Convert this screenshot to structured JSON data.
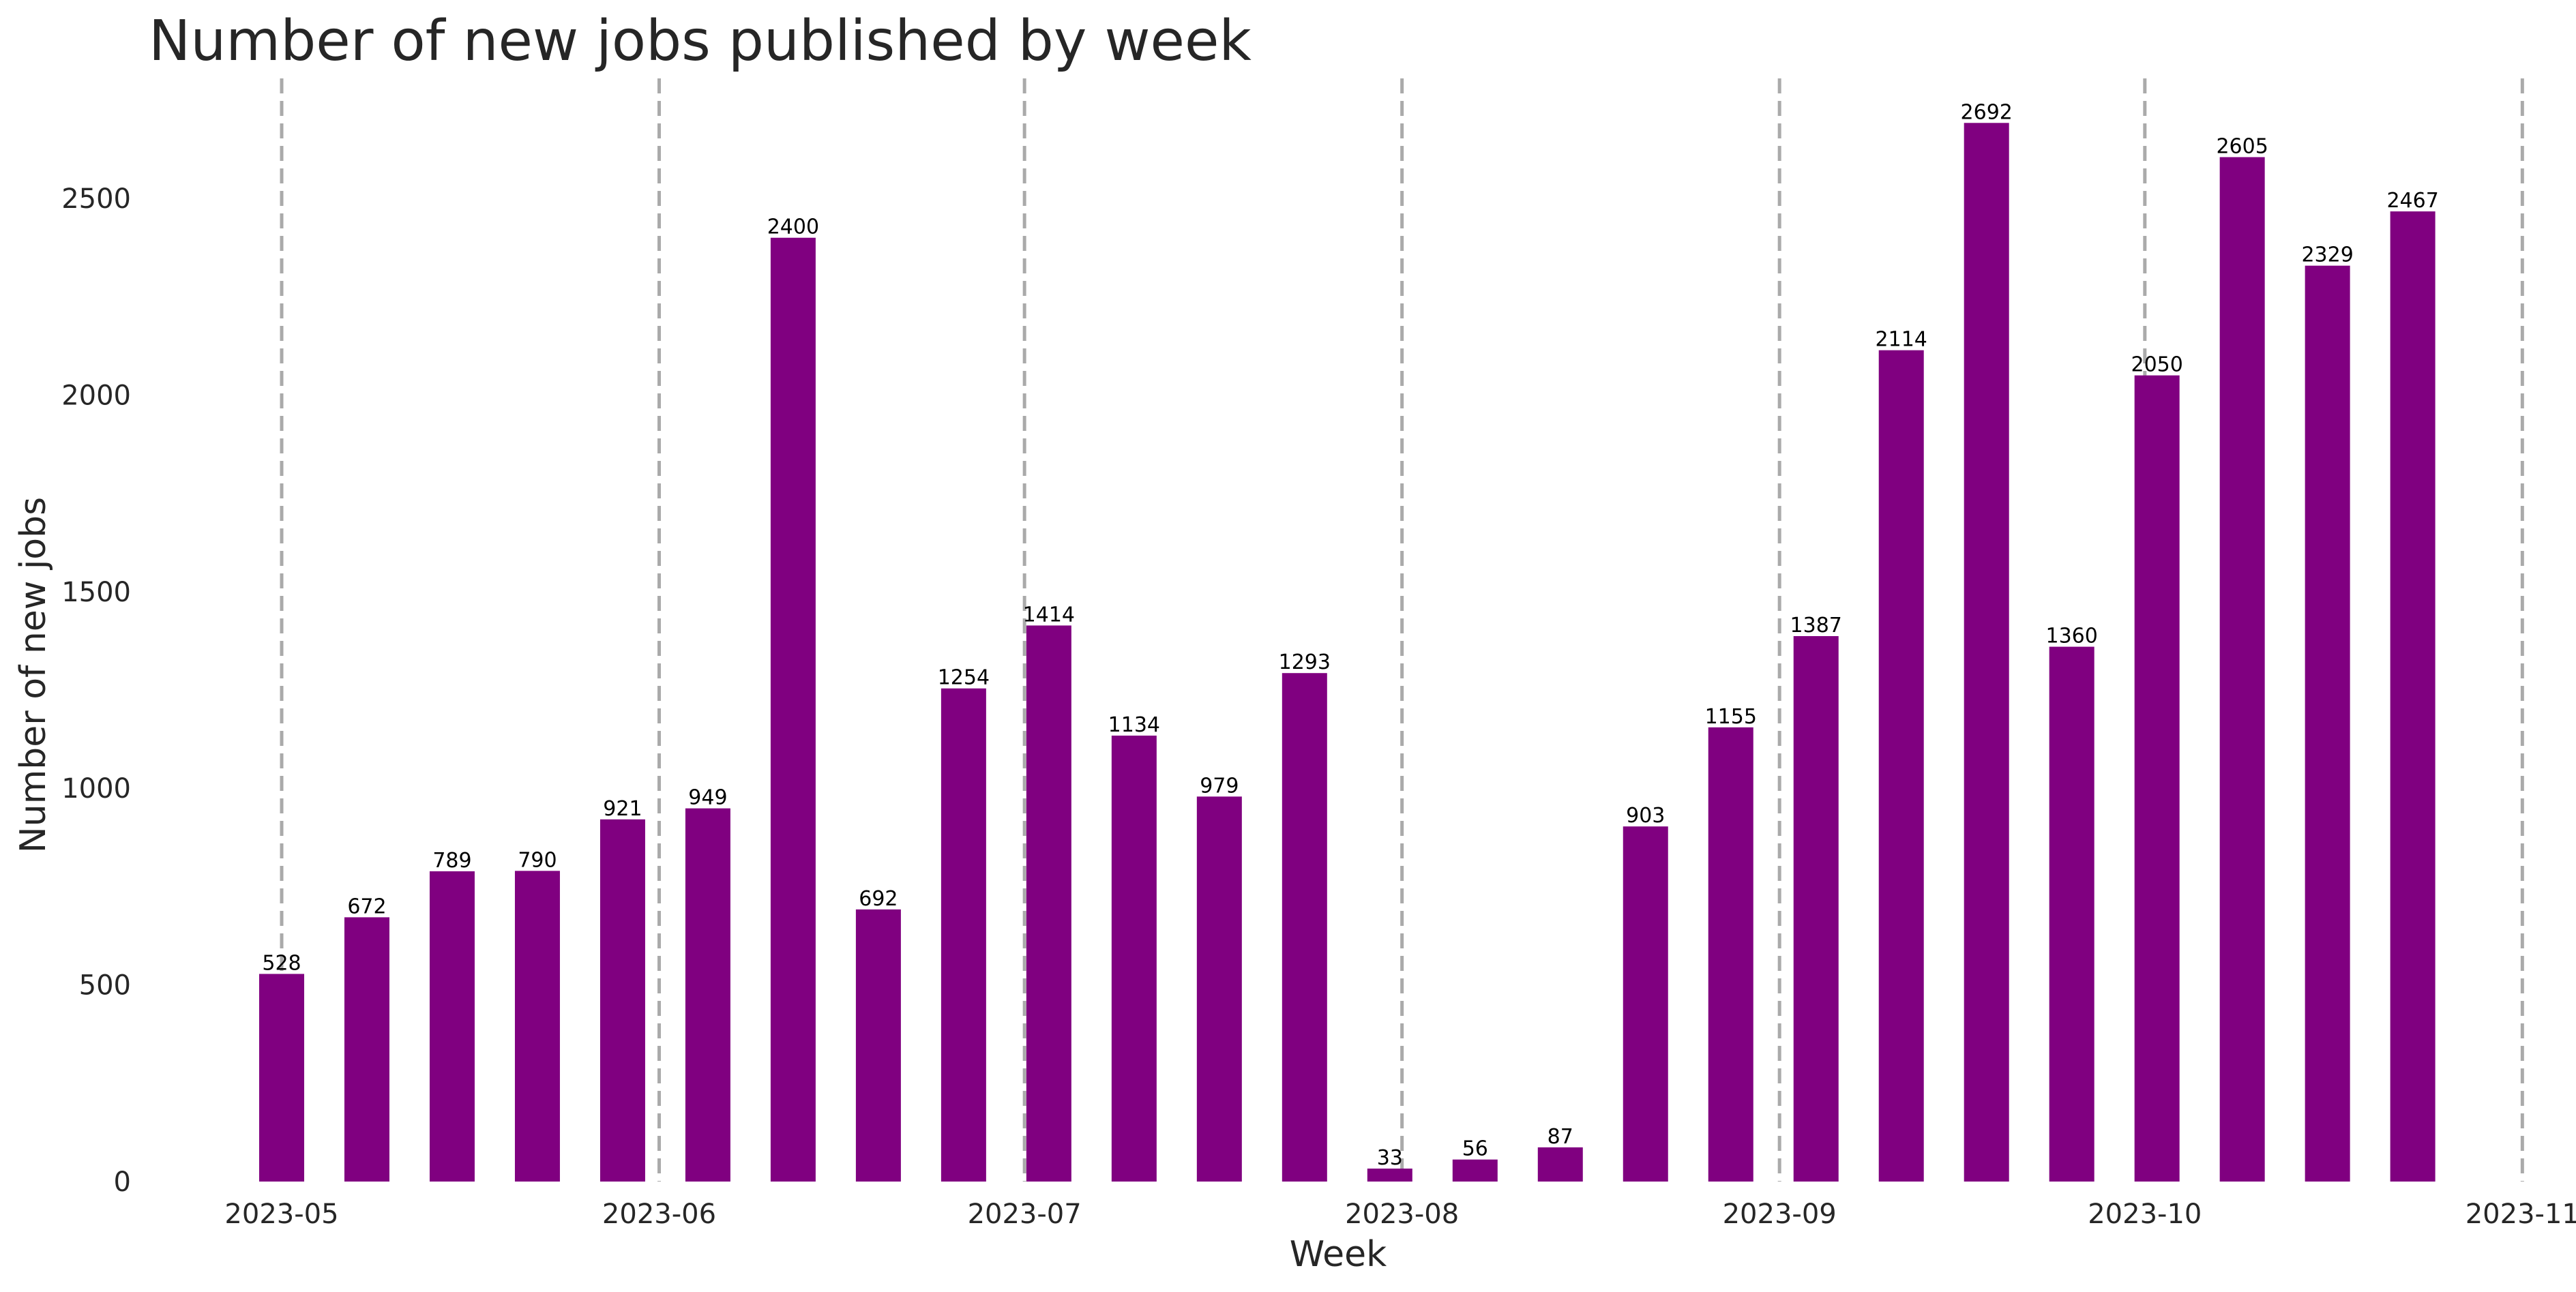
{
  "chart_data": {
    "type": "bar",
    "title": "Number of new jobs published by week",
    "xlabel": "Week",
    "ylabel": "Number of new jobs",
    "x": [
      "2023-05-01",
      "2023-05-08",
      "2023-05-15",
      "2023-05-22",
      "2023-05-29",
      "2023-06-05",
      "2023-06-12",
      "2023-06-19",
      "2023-06-26",
      "2023-07-03",
      "2023-07-10",
      "2023-07-17",
      "2023-07-24",
      "2023-07-31",
      "2023-08-07",
      "2023-08-14",
      "2023-08-21",
      "2023-08-28",
      "2023-09-04",
      "2023-09-11",
      "2023-09-18",
      "2023-09-25",
      "2023-10-02",
      "2023-10-09",
      "2023-10-16",
      "2023-10-23"
    ],
    "values": [
      528,
      672,
      789,
      790,
      921,
      949,
      2400,
      692,
      1254,
      1414,
      1134,
      979,
      1293,
      33,
      56,
      87,
      903,
      1155,
      1387,
      2114,
      2692,
      1360,
      2050,
      2605,
      2329,
      2467
    ],
    "ylim": [
      0,
      2800
    ],
    "yticks": [
      0,
      500,
      1000,
      1500,
      2000,
      2500
    ],
    "xticks": [
      "2023-05",
      "2023-06",
      "2023-07",
      "2023-08",
      "2023-09",
      "2023-10",
      "2023-11"
    ],
    "xticks_dates": [
      "2023-05-01",
      "2023-06-01",
      "2023-07-01",
      "2023-08-01",
      "2023-09-01",
      "2023-10-01",
      "2023-11-01"
    ],
    "bar_color": "#800080",
    "reference_line_color": "#aaaaaa",
    "grid": false,
    "reference_lines": "dashed vertical lines at each month start"
  }
}
